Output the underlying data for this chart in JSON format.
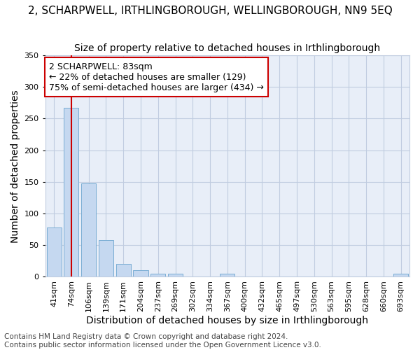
{
  "title": "2, SCHARPWELL, IRTHLINGBOROUGH, WELLINGBOROUGH, NN9 5EQ",
  "subtitle": "Size of property relative to detached houses in Irthlingborough",
  "xlabel": "Distribution of detached houses by size in Irthlingborough",
  "ylabel": "Number of detached properties",
  "categories": [
    "41sqm",
    "74sqm",
    "106sqm",
    "139sqm",
    "171sqm",
    "204sqm",
    "237sqm",
    "269sqm",
    "302sqm",
    "334sqm",
    "367sqm",
    "400sqm",
    "432sqm",
    "465sqm",
    "497sqm",
    "530sqm",
    "563sqm",
    "595sqm",
    "628sqm",
    "660sqm",
    "693sqm"
  ],
  "values": [
    78,
    267,
    148,
    58,
    20,
    11,
    5,
    5,
    0,
    0,
    5,
    0,
    0,
    0,
    0,
    0,
    0,
    0,
    0,
    0,
    5
  ],
  "bar_color": "#c5d8f0",
  "bar_edge_color": "#7aadd4",
  "bar_width": 0.85,
  "ylim": [
    0,
    350
  ],
  "yticks": [
    0,
    50,
    100,
    150,
    200,
    250,
    300,
    350
  ],
  "red_line_x": 1,
  "red_line_color": "#cc0000",
  "annotation_line1": "2 SCHARPWELL: 83sqm",
  "annotation_line2": "← 22% of detached houses are smaller (129)",
  "annotation_line3": "75% of semi-detached houses are larger (434) →",
  "annotation_box_color": "#ffffff",
  "annotation_border_color": "#cc0000",
  "footer_text": "Contains HM Land Registry data © Crown copyright and database right 2024.\nContains public sector information licensed under the Open Government Licence v3.0.",
  "bg_color": "#e8eef8",
  "fig_bg_color": "#ffffff",
  "grid_color": "#c0cce0",
  "title_fontsize": 11,
  "subtitle_fontsize": 10,
  "axis_label_fontsize": 10,
  "tick_fontsize": 8,
  "annotation_fontsize": 9,
  "footer_fontsize": 7.5
}
